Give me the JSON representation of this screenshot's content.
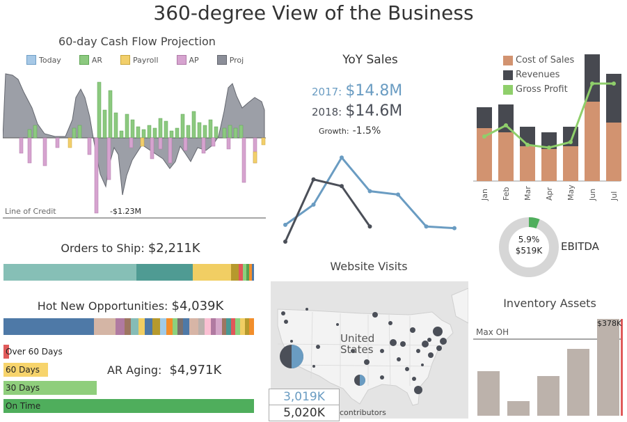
{
  "title": "360-degree View of the Business",
  "cash_flow": {
    "title": "60-day Cash Flow Projection",
    "legend": [
      {
        "label": "Today",
        "color": "#a6c8e6"
      },
      {
        "label": "AR",
        "color": "#8cc97f"
      },
      {
        "label": "Payroll",
        "color": "#f2cf6b"
      },
      {
        "label": "AP",
        "color": "#d6a3cf"
      },
      {
        "label": "Proj",
        "color": "#8b8e98"
      }
    ],
    "line_of_credit_label": "Line of Credit",
    "min_label": "-$1.23M"
  },
  "yoy": {
    "title": "YoY Sales",
    "y2017_label": "2017:",
    "y2017_value": "$14.8M",
    "y2018_label": "2018:",
    "y2018_value": "$14.6M",
    "growth_label": "Growth:",
    "growth_value": "-1.5%",
    "color_2017": "#6a9cc2",
    "color_2018": "#4b4f58"
  },
  "pnl": {
    "legend": [
      {
        "label": "Cost of Sales",
        "color": "#d29370"
      },
      {
        "label": "Revenues",
        "color": "#474950"
      },
      {
        "label": "Gross Profit",
        "color": "#8fcf6b"
      }
    ]
  },
  "ebitda": {
    "pct": "5.9%",
    "amount": "$519K",
    "label": "EBITDA",
    "fraction": 0.059
  },
  "orders": {
    "label": "Orders to Ship:",
    "value": "$2,211K"
  },
  "opps": {
    "label": "Hot New Opportunities:",
    "value": "$4,039K"
  },
  "website": {
    "title": "Website Visits",
    "map_label": "United States",
    "kpi1": "3,019K",
    "kpi2": "5,020K",
    "attribution": "contributors"
  },
  "inventory": {
    "title": "Inventory Assets",
    "max_label": "Max OH",
    "top_label": "$378K"
  },
  "ar": {
    "label": "AR Aging:",
    "value": "$4,971K",
    "buckets": [
      {
        "label": "Over 60 Days",
        "color": "#e05a5a"
      },
      {
        "label": "60 Days",
        "color": "#f7d46c"
      },
      {
        "label": "30 Days",
        "color": "#8fce7c"
      },
      {
        "label": "On Time",
        "color": "#4fae5c"
      }
    ]
  },
  "chart_data": [
    {
      "type": "line",
      "title": "YoY Sales",
      "series": [
        {
          "name": "2017",
          "values": [
            1.0,
            2.2,
            5.0,
            3.0,
            2.8,
            0.9,
            0.8
          ]
        },
        {
          "name": "2018",
          "values": [
            0.0,
            3.7,
            3.3,
            0.9
          ]
        }
      ]
    },
    {
      "type": "bar",
      "categories": [
        "Jan",
        "Feb",
        "Mar",
        "Apr",
        "May",
        "Jun",
        "Jul"
      ],
      "series": [
        {
          "name": "Cost of Sales",
          "values": [
            38,
            35,
            25,
            23,
            25,
            57,
            42
          ]
        },
        {
          "name": "Revenues",
          "values": [
            15,
            20,
            14,
            12,
            14,
            34,
            35
          ]
        },
        {
          "name": "Gross Profit",
          "values": [
            16,
            20,
            13,
            12,
            14,
            35,
            35
          ]
        }
      ]
    },
    {
      "type": "bar",
      "title": "Inventory Assets",
      "values": [
        64,
        21,
        57,
        96,
        139
      ]
    },
    {
      "type": "bar",
      "title": "AR Aging",
      "categories": [
        "Over 60 Days",
        "60 Days",
        "30 Days",
        "On Time"
      ],
      "values": [
        3,
        25,
        52,
        140
      ]
    }
  ]
}
